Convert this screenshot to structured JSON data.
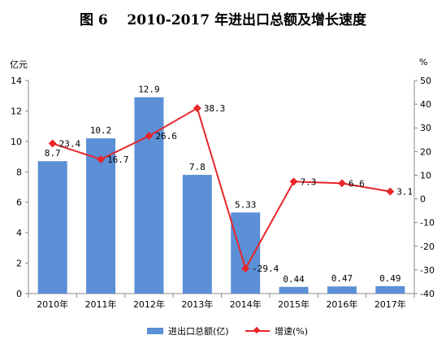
{
  "title": "图 6    2010-2017 年进出口总额及增长速度",
  "chart_data": {
    "type": "bar",
    "categories": [
      "2010年",
      "2011年",
      "2012年",
      "2013年",
      "2014年",
      "2015年",
      "2016年",
      "2017年"
    ],
    "series": [
      {
        "name": "进出口总额(亿)",
        "type": "bar",
        "axis": "left",
        "values": [
          8.7,
          10.2,
          12.9,
          7.8,
          5.33,
          0.44,
          0.47,
          0.49
        ],
        "labels": [
          "8.7",
          "10.2",
          "12.9",
          "7.8",
          "5.33",
          "0.44",
          "0.47",
          "0.49"
        ],
        "color": "#5b8fd6"
      },
      {
        "name": "增速(%)",
        "type": "line",
        "axis": "right",
        "values": [
          23.4,
          16.7,
          26.6,
          38.3,
          -29.4,
          7.3,
          6.6,
          3.1
        ],
        "labels": [
          "23.4",
          "16.7",
          "26.6",
          "38.3",
          "-29.4",
          "7.3",
          "6.6",
          "3.1"
        ],
        "color": "#e8262b"
      }
    ],
    "y_left": {
      "label": "亿元",
      "ylim": [
        0,
        14
      ],
      "ticks": [
        "0",
        "2",
        "4",
        "6",
        "8",
        "10",
        "12",
        "14"
      ]
    },
    "y_right": {
      "label": "%",
      "ylim": [
        -40,
        50
      ],
      "ticks": [
        "-40",
        "-30",
        "-20",
        "-10",
        "0",
        "10",
        "20",
        "30",
        "40",
        "50"
      ]
    },
    "grid": false,
    "legend": "bottom"
  }
}
